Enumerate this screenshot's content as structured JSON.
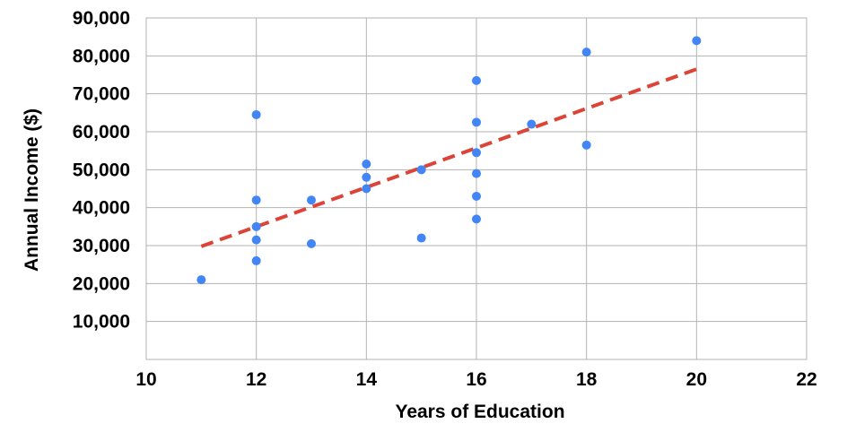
{
  "chart_data": {
    "type": "scatter",
    "xlabel": "Years of Education",
    "ylabel": "Annual Income ($)",
    "xlim": [
      10,
      22
    ],
    "ylim": [
      0,
      90000
    ],
    "x_ticks": [
      10,
      12,
      14,
      16,
      18,
      20,
      22
    ],
    "x_tick_labels": [
      "10",
      "12",
      "14",
      "16",
      "18",
      "20",
      "22"
    ],
    "y_ticks": [
      10000,
      20000,
      30000,
      40000,
      50000,
      60000,
      70000,
      80000,
      90000
    ],
    "y_tick_labels": [
      "10,000",
      "20,000",
      "30,000",
      "40,000",
      "50,000",
      "60,000",
      "70,000",
      "80,000",
      "90,000"
    ],
    "grid": true,
    "points": [
      {
        "x": 11,
        "y": 21000
      },
      {
        "x": 12,
        "y": 64500
      },
      {
        "x": 12,
        "y": 42000
      },
      {
        "x": 12,
        "y": 35000
      },
      {
        "x": 12,
        "y": 31500
      },
      {
        "x": 12,
        "y": 26000
      },
      {
        "x": 13,
        "y": 42000
      },
      {
        "x": 13,
        "y": 30500
      },
      {
        "x": 14,
        "y": 51500
      },
      {
        "x": 14,
        "y": 48000
      },
      {
        "x": 14,
        "y": 45000
      },
      {
        "x": 15,
        "y": 50000
      },
      {
        "x": 15,
        "y": 32000
      },
      {
        "x": 16,
        "y": 73500
      },
      {
        "x": 16,
        "y": 62500
      },
      {
        "x": 16,
        "y": 54500
      },
      {
        "x": 16,
        "y": 49000
      },
      {
        "x": 16,
        "y": 43000
      },
      {
        "x": 16,
        "y": 37000
      },
      {
        "x": 17,
        "y": 62000
      },
      {
        "x": 18,
        "y": 81000
      },
      {
        "x": 18,
        "y": 56500
      },
      {
        "x": 20,
        "y": 84000
      }
    ],
    "trendline": {
      "x": [
        11,
        20
      ],
      "y": [
        29800,
        76500
      ]
    },
    "colors": {
      "points": "#4285f4",
      "trendline": "#db4437",
      "grid": "#b3b3b3"
    }
  }
}
